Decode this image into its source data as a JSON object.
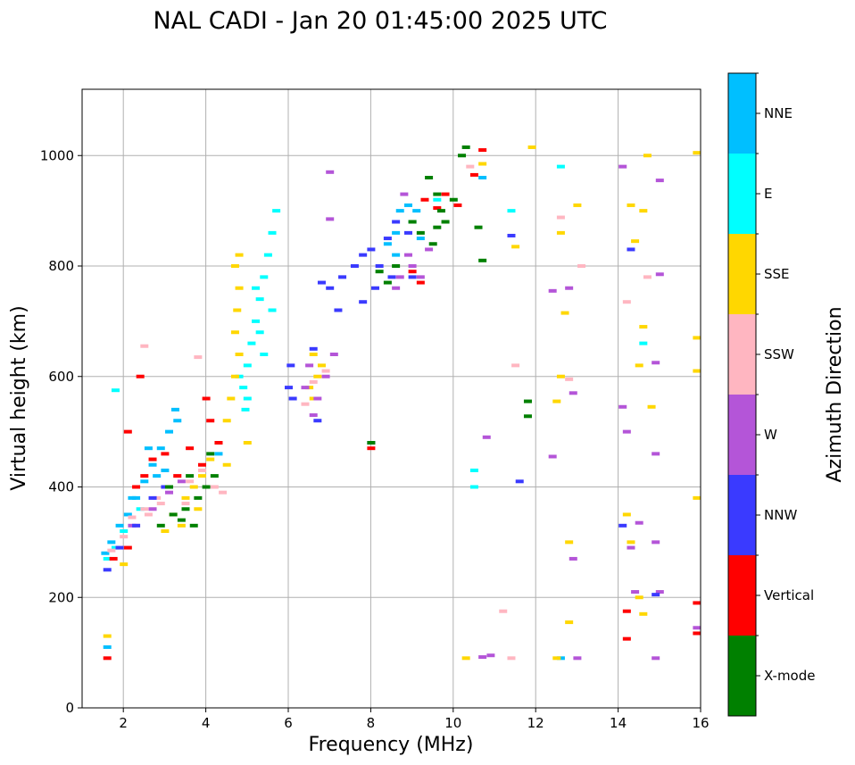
{
  "chart_data": {
    "type": "scatter",
    "title": "NAL CADI - Jan 20 01:45:00 2025 UTC",
    "xlabel": "Frequency (MHz)",
    "ylabel": "Virtual height (km)",
    "xlim": [
      1,
      16
    ],
    "ylim": [
      0,
      1120
    ],
    "xticks": [
      "2",
      "4",
      "6",
      "8",
      "10",
      "12",
      "14",
      "16"
    ],
    "xtick_values": [
      2,
      4,
      6,
      8,
      10,
      12,
      14,
      16
    ],
    "yticks": [
      "0",
      "200",
      "400",
      "600",
      "800",
      "1000"
    ],
    "ytick_values": [
      0,
      200,
      400,
      600,
      800,
      1000
    ],
    "grid": true,
    "colorbar": {
      "title": "Azimuth Direction",
      "categories": [
        {
          "label": "X-mode",
          "color": "#008000"
        },
        {
          "label": "Vertical",
          "color": "#ff0000"
        },
        {
          "label": "NNW",
          "color": "#3a3aff"
        },
        {
          "label": "W",
          "color": "#b455d8"
        },
        {
          "label": "SSW",
          "color": "#ffb6c1"
        },
        {
          "label": "SSE",
          "color": "#ffd700"
        },
        {
          "label": "E",
          "color": "#00ffff"
        },
        {
          "label": "NNE",
          "color": "#00bfff"
        }
      ]
    },
    "series": [
      {
        "name": "NNE",
        "points": [
          [
            1.55,
            280
          ],
          [
            1.7,
            300
          ],
          [
            1.9,
            330
          ],
          [
            2.1,
            350
          ],
          [
            2.3,
            380
          ],
          [
            2.5,
            410
          ],
          [
            2.7,
            440
          ],
          [
            2.9,
            470
          ],
          [
            3.1,
            500
          ],
          [
            3.25,
            540
          ],
          [
            2.2,
            380
          ],
          [
            2.6,
            470
          ],
          [
            3.0,
            430
          ],
          [
            3.3,
            520
          ],
          [
            1.6,
            110
          ],
          [
            8.7,
            900
          ],
          [
            8.9,
            910
          ],
          [
            9.1,
            900
          ],
          [
            8.6,
            860
          ],
          [
            8.4,
            840
          ],
          [
            9.0,
            880
          ],
          [
            9.2,
            850
          ],
          [
            8.6,
            820
          ],
          [
            10.7,
            960
          ],
          [
            12.6,
            90
          ],
          [
            4.3,
            460
          ],
          [
            2.8,
            420
          ]
        ]
      },
      {
        "name": "E",
        "points": [
          [
            1.6,
            270
          ],
          [
            1.8,
            290
          ],
          [
            2.0,
            320
          ],
          [
            2.4,
            360
          ],
          [
            4.9,
            580
          ],
          [
            5.0,
            620
          ],
          [
            5.1,
            660
          ],
          [
            5.2,
            700
          ],
          [
            5.3,
            740
          ],
          [
            5.4,
            780
          ],
          [
            5.5,
            820
          ],
          [
            5.6,
            860
          ],
          [
            5.7,
            900
          ],
          [
            4.8,
            600
          ],
          [
            5.0,
            560
          ],
          [
            5.4,
            640
          ],
          [
            5.3,
            680
          ],
          [
            5.6,
            720
          ],
          [
            5.2,
            760
          ],
          [
            4.95,
            540
          ],
          [
            10.5,
            430
          ],
          [
            10.5,
            400
          ],
          [
            12.6,
            980
          ],
          [
            14.6,
            660
          ],
          [
            11.4,
            900
          ],
          [
            1.8,
            575
          ],
          [
            9.6,
            920
          ]
        ]
      },
      {
        "name": "SSE",
        "points": [
          [
            1.6,
            130
          ],
          [
            2.0,
            260
          ],
          [
            3.0,
            320
          ],
          [
            3.2,
            350
          ],
          [
            3.5,
            380
          ],
          [
            3.7,
            400
          ],
          [
            3.9,
            420
          ],
          [
            4.1,
            450
          ],
          [
            4.3,
            480
          ],
          [
            4.5,
            520
          ],
          [
            4.6,
            560
          ],
          [
            4.7,
            600
          ],
          [
            4.8,
            640
          ],
          [
            4.7,
            680
          ],
          [
            4.75,
            720
          ],
          [
            4.8,
            760
          ],
          [
            4.7,
            800
          ],
          [
            4.8,
            820
          ],
          [
            5.0,
            480
          ],
          [
            4.5,
            440
          ],
          [
            3.8,
            360
          ],
          [
            3.4,
            330
          ],
          [
            6.6,
            560
          ],
          [
            6.7,
            600
          ],
          [
            6.8,
            620
          ],
          [
            6.5,
            580
          ],
          [
            6.6,
            640
          ],
          [
            14.2,
            350
          ],
          [
            14.3,
            300
          ],
          [
            14.5,
            200
          ],
          [
            14.6,
            170
          ],
          [
            12.8,
            300
          ],
          [
            12.8,
            155
          ],
          [
            12.7,
            715
          ],
          [
            12.6,
            600
          ],
          [
            12.6,
            860
          ],
          [
            13.0,
            910
          ],
          [
            14.7,
            1000
          ],
          [
            14.6,
            900
          ],
          [
            14.5,
            620
          ],
          [
            14.6,
            690
          ],
          [
            14.8,
            545
          ],
          [
            15.9,
            1005
          ],
          [
            15.9,
            670
          ],
          [
            15.9,
            610
          ],
          [
            15.9,
            380
          ],
          [
            11.5,
            835
          ],
          [
            12.5,
            555
          ],
          [
            12.5,
            90
          ],
          [
            10.3,
            90
          ],
          [
            14.4,
            845
          ],
          [
            14.3,
            910
          ],
          [
            11.9,
            1015
          ],
          [
            10.7,
            985
          ]
        ]
      },
      {
        "name": "SSW",
        "points": [
          [
            1.7,
            285
          ],
          [
            2.0,
            310
          ],
          [
            2.3,
            330
          ],
          [
            2.6,
            350
          ],
          [
            2.8,
            380
          ],
          [
            3.0,
            400
          ],
          [
            3.3,
            420
          ],
          [
            3.6,
            410
          ],
          [
            3.9,
            430
          ],
          [
            4.2,
            400
          ],
          [
            4.4,
            390
          ],
          [
            2.5,
            360
          ],
          [
            2.9,
            370
          ],
          [
            3.5,
            370
          ],
          [
            2.2,
            345
          ],
          [
            6.4,
            550
          ],
          [
            6.6,
            590
          ],
          [
            6.9,
            610
          ],
          [
            12.6,
            888
          ],
          [
            12.8,
            595
          ],
          [
            13.1,
            800
          ],
          [
            14.7,
            780
          ],
          [
            14.2,
            735
          ],
          [
            11.2,
            175
          ],
          [
            11.5,
            620
          ],
          [
            11.4,
            90
          ],
          [
            10.4,
            980
          ],
          [
            2.5,
            655
          ],
          [
            3.8,
            635
          ]
        ]
      },
      {
        "name": "W",
        "points": [
          [
            2.2,
            330
          ],
          [
            2.7,
            360
          ],
          [
            3.1,
            390
          ],
          [
            3.4,
            410
          ],
          [
            6.4,
            580
          ],
          [
            6.5,
            620
          ],
          [
            6.7,
            560
          ],
          [
            6.9,
            600
          ],
          [
            7.1,
            640
          ],
          [
            6.6,
            530
          ],
          [
            8.7,
            780
          ],
          [
            9.0,
            800
          ],
          [
            9.2,
            780
          ],
          [
            8.9,
            820
          ],
          [
            9.4,
            830
          ],
          [
            8.6,
            760
          ],
          [
            8.8,
            930
          ],
          [
            12.4,
            755
          ],
          [
            12.8,
            760
          ],
          [
            12.9,
            570
          ],
          [
            12.9,
            270
          ],
          [
            13.0,
            90
          ],
          [
            14.1,
            545
          ],
          [
            14.2,
            500
          ],
          [
            14.3,
            290
          ],
          [
            14.5,
            335
          ],
          [
            14.4,
            210
          ],
          [
            14.9,
            300
          ],
          [
            15.0,
            210
          ],
          [
            14.9,
            625
          ],
          [
            14.9,
            460
          ],
          [
            14.9,
            90
          ],
          [
            14.1,
            980
          ],
          [
            15.0,
            955
          ],
          [
            15.0,
            785
          ],
          [
            15.9,
            145
          ],
          [
            12.4,
            455
          ],
          [
            10.8,
            490
          ],
          [
            7.0,
            970
          ],
          [
            7.0,
            885
          ],
          [
            10.7,
            92
          ],
          [
            10.9,
            95
          ]
        ]
      },
      {
        "name": "NNW",
        "points": [
          [
            1.6,
            250
          ],
          [
            1.9,
            290
          ],
          [
            2.3,
            330
          ],
          [
            2.7,
            380
          ],
          [
            3.0,
            400
          ],
          [
            6.0,
            580
          ],
          [
            6.05,
            620
          ],
          [
            6.1,
            560
          ],
          [
            6.6,
            650
          ],
          [
            6.7,
            520
          ],
          [
            7.0,
            760
          ],
          [
            7.3,
            780
          ],
          [
            7.6,
            800
          ],
          [
            7.8,
            820
          ],
          [
            8.0,
            830
          ],
          [
            8.2,
            800
          ],
          [
            8.4,
            850
          ],
          [
            8.6,
            880
          ],
          [
            8.9,
            860
          ],
          [
            9.0,
            780
          ],
          [
            8.5,
            780
          ],
          [
            8.1,
            760
          ],
          [
            6.8,
            770
          ],
          [
            7.2,
            720
          ],
          [
            7.8,
            735
          ],
          [
            11.6,
            410
          ],
          [
            14.3,
            830
          ],
          [
            14.9,
            205
          ],
          [
            14.1,
            330
          ],
          [
            11.4,
            855
          ],
          [
            8.0,
            480
          ]
        ]
      },
      {
        "name": "Vertical",
        "points": [
          [
            1.6,
            90
          ],
          [
            1.75,
            270
          ],
          [
            2.1,
            290
          ],
          [
            2.3,
            400
          ],
          [
            2.5,
            420
          ],
          [
            2.7,
            450
          ],
          [
            3.0,
            460
          ],
          [
            3.3,
            420
          ],
          [
            3.6,
            470
          ],
          [
            3.9,
            440
          ],
          [
            4.0,
            560
          ],
          [
            4.1,
            520
          ],
          [
            4.3,
            480
          ],
          [
            2.4,
            600
          ],
          [
            8.0,
            470
          ],
          [
            9.0,
            790
          ],
          [
            9.2,
            770
          ],
          [
            9.3,
            920
          ],
          [
            9.6,
            905
          ],
          [
            9.8,
            930
          ],
          [
            10.1,
            910
          ],
          [
            10.5,
            965
          ],
          [
            10.7,
            1010
          ],
          [
            14.2,
            175
          ],
          [
            14.2,
            125
          ],
          [
            15.9,
            190
          ],
          [
            15.9,
            135
          ],
          [
            2.1,
            500
          ]
        ]
      },
      {
        "name": "X-mode",
        "points": [
          [
            2.9,
            330
          ],
          [
            3.2,
            350
          ],
          [
            3.5,
            360
          ],
          [
            3.8,
            380
          ],
          [
            4.0,
            400
          ],
          [
            4.2,
            420
          ],
          [
            3.4,
            340
          ],
          [
            3.7,
            330
          ],
          [
            3.1,
            400
          ],
          [
            3.6,
            420
          ],
          [
            4.1,
            460
          ],
          [
            8.2,
            790
          ],
          [
            8.4,
            770
          ],
          [
            8.6,
            800
          ],
          [
            9.0,
            880
          ],
          [
            9.2,
            860
          ],
          [
            9.5,
            840
          ],
          [
            9.6,
            870
          ],
          [
            9.7,
            900
          ],
          [
            9.8,
            880
          ],
          [
            9.6,
            930
          ],
          [
            9.4,
            960
          ],
          [
            10.0,
            920
          ],
          [
            10.2,
            1000
          ],
          [
            10.3,
            1015
          ],
          [
            10.6,
            870
          ],
          [
            10.7,
            810
          ],
          [
            11.8,
            555
          ],
          [
            11.8,
            528
          ],
          [
            8.0,
            480
          ]
        ]
      }
    ]
  }
}
